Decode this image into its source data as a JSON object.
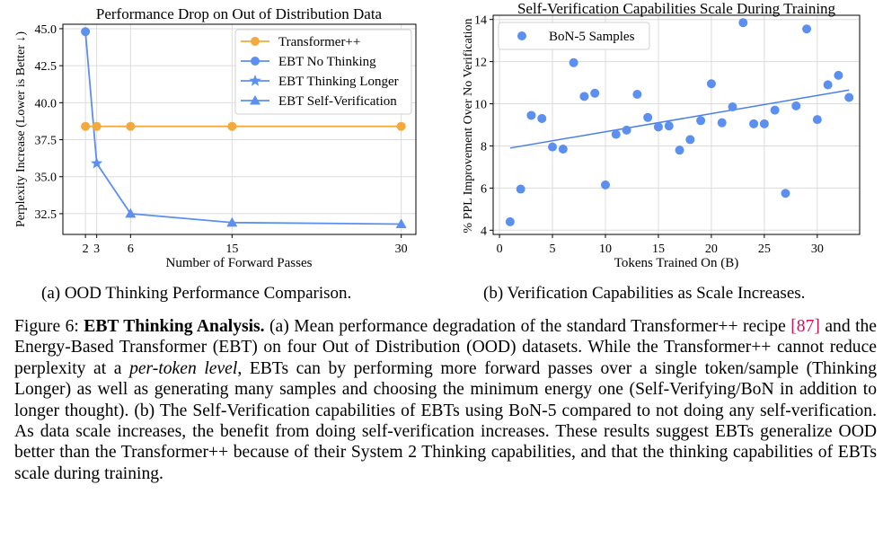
{
  "figures": [
    {
      "subcaption": "(a) OOD Thinking Performance Comparison.",
      "chart_data": {
        "type": "line",
        "title": "Performance Drop on Out of Distribution Data",
        "xlabel": "Number of Forward Passes",
        "ylabel": "Perplexity Increase (Lower is Better ↓)",
        "xlim": [
          0,
          31.3
        ],
        "ylim": [
          31.1,
          45.3
        ],
        "xticks": [
          2,
          3,
          6,
          15,
          30
        ],
        "xtick_labels": [
          "2",
          "3",
          "6",
          "15",
          "30"
        ],
        "yticks": [
          32.5,
          35.0,
          37.5,
          40.0,
          42.5,
          45.0
        ],
        "ytick_labels": [
          "32.5",
          "35.0",
          "37.5",
          "40.0",
          "42.5",
          "45.0"
        ],
        "series": [
          {
            "name": "Transformer++",
            "color": "#f4a93c",
            "marker": "circle",
            "points": [
              [
                2,
                38.4
              ],
              [
                3,
                38.4
              ],
              [
                6,
                38.4
              ],
              [
                15,
                38.4
              ],
              [
                30,
                38.4
              ]
            ]
          },
          {
            "name": "EBT No Thinking",
            "color": "#5b8ff0",
            "marker": "circle",
            "points": [
              [
                2,
                44.8
              ]
            ]
          },
          {
            "name": "EBT Thinking Longer",
            "color": "#5b8ff0",
            "marker": "star",
            "points": [
              [
                3,
                35.9
              ]
            ]
          },
          {
            "name": "EBT Self-Verification",
            "color": "#5b8ff0",
            "marker": "triangle",
            "points": [
              [
                6,
                32.5
              ],
              [
                15,
                31.9
              ],
              [
                30,
                31.8
              ]
            ]
          }
        ],
        "ebt_line": [
          [
            2,
            44.8
          ],
          [
            3,
            35.9
          ],
          [
            6,
            32.5
          ],
          [
            15,
            31.9
          ],
          [
            30,
            31.8
          ]
        ],
        "legend": "top-right"
      }
    },
    {
      "subcaption": "(b) Verification Capabilities as Scale Increases.",
      "chart_data": {
        "type": "scatter",
        "title": "Self-Verification Capabilities Scale During Training",
        "xlabel": "Tokens Trained On (B)",
        "ylabel": "% PPL Improvement Over No Verification",
        "xlim": [
          -0.6,
          34.0
        ],
        "ylim": [
          3.8,
          14.2
        ],
        "xticks": [
          0,
          5,
          10,
          15,
          20,
          25,
          30
        ],
        "xtick_labels": [
          "0",
          "5",
          "10",
          "15",
          "20",
          "25",
          "30"
        ],
        "yticks": [
          4,
          6,
          8,
          10,
          12,
          14
        ],
        "ytick_labels": [
          "4",
          "6",
          "8",
          "10",
          "12",
          "14"
        ],
        "series": [
          {
            "name": "BoN-5 Samples",
            "color": "#5b8ff0",
            "points": [
              [
                1,
                4.4
              ],
              [
                2,
                5.95
              ],
              [
                3,
                9.45
              ],
              [
                4,
                9.3
              ],
              [
                5,
                7.95
              ],
              [
                6,
                7.85
              ],
              [
                7,
                11.95
              ],
              [
                8,
                10.35
              ],
              [
                9,
                10.5
              ],
              [
                10,
                6.15
              ],
              [
                11,
                8.55
              ],
              [
                12,
                8.75
              ],
              [
                13,
                10.45
              ],
              [
                14,
                9.35
              ],
              [
                15,
                8.9
              ],
              [
                16,
                8.95
              ],
              [
                17,
                7.8
              ],
              [
                18,
                8.3
              ],
              [
                19,
                9.2
              ],
              [
                20,
                10.95
              ],
              [
                21,
                9.1
              ],
              [
                22,
                9.85
              ],
              [
                23,
                13.85
              ],
              [
                24,
                9.05
              ],
              [
                25,
                9.05
              ],
              [
                26,
                9.7
              ],
              [
                27,
                5.75
              ],
              [
                28,
                9.9
              ],
              [
                29,
                13.55
              ],
              [
                30,
                9.25
              ],
              [
                31,
                10.9
              ],
              [
                32,
                11.35
              ],
              [
                33,
                10.3
              ]
            ]
          }
        ],
        "trendline": [
          [
            1,
            7.9
          ],
          [
            33,
            10.65
          ]
        ],
        "legend": "top-left"
      }
    }
  ],
  "caption": {
    "label": "Figure 6:",
    "bold_title": "EBT Thinking Analysis.",
    "part1": "(a) Mean performance degradation of the standard Transformer++ recipe",
    "cite": "[87]",
    "part2": "and the Energy-Based Transformer (EBT) on four Out of Distribution (OOD) datasets. While the Transformer++ cannot reduce perplexity at a",
    "italic": "per-token level",
    "part3": ", EBTs can by performing more forward passes over a single token/sample (Thinking Longer) as well as generating many samples and choosing the minimum energy one (Self-Verifying/BoN in addition to longer thought). (b) The Self-Verification capabilities of EBTs using BoN-5 compared to not doing any self-verification. As data scale increases, the benefit from doing self-verification increases. These results suggest EBTs generalize OOD better than the Transformer++ because of their System 2 Thinking capabilities, and that the thinking capabilities of EBTs scale during training."
  }
}
